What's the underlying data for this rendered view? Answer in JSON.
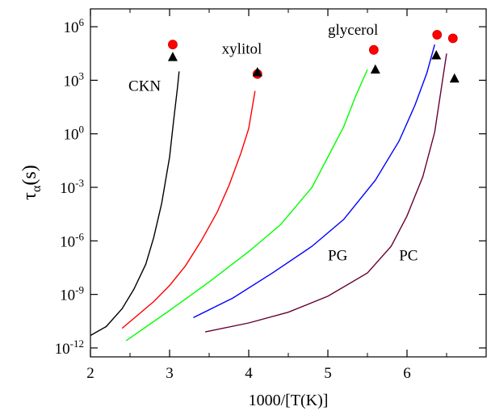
{
  "chart_data": {
    "type": "line",
    "title": "",
    "xlabel": "1000/[T(K)]",
    "ylabel": {
      "main": "τ",
      "sub": "α",
      "suffix": "(s)"
    },
    "xlim": [
      2,
      7
    ],
    "ylim_log10": [
      -12.5,
      7
    ],
    "yscale": "log",
    "grid": false,
    "x_ticks": [
      2,
      3,
      4,
      5,
      6
    ],
    "y_ticks": [
      {
        "base": "10",
        "exp": "6",
        "log": 6
      },
      {
        "base": "10",
        "exp": "3",
        "log": 3
      },
      {
        "base": "10",
        "exp": "0",
        "log": 0
      },
      {
        "base": "10",
        "exp": "-3",
        "log": -3
      },
      {
        "base": "10",
        "exp": "-6",
        "log": -6
      },
      {
        "base": "10",
        "exp": "-9",
        "log": -9
      },
      {
        "base": "10",
        "exp": "-12",
        "log": -12
      }
    ],
    "series": [
      {
        "name": "CKN",
        "color": "#000000",
        "x": [
          2.0,
          2.2,
          2.4,
          2.55,
          2.7,
          2.8,
          2.9,
          3.0,
          3.05,
          3.1,
          3.12
        ],
        "log_y": [
          -11.3,
          -10.8,
          -9.8,
          -8.7,
          -7.3,
          -5.8,
          -3.9,
          -1.3,
          0.7,
          2.6,
          3.5
        ]
      },
      {
        "name": "xylitol",
        "color": "#ff0000",
        "x": [
          2.4,
          2.8,
          3.0,
          3.2,
          3.4,
          3.6,
          3.75,
          3.9,
          4.0,
          4.08
        ],
        "log_y": [
          -10.9,
          -9.4,
          -8.5,
          -7.4,
          -6.0,
          -4.4,
          -2.9,
          -1.1,
          0.3,
          2.4
        ]
      },
      {
        "name": "glycerol",
        "color": "#00ff00",
        "x": [
          2.45,
          3.0,
          3.5,
          4.0,
          4.4,
          4.8,
          5.0,
          5.2,
          5.35,
          5.5
        ],
        "log_y": [
          -11.6,
          -9.9,
          -8.3,
          -6.6,
          -5.1,
          -3.0,
          -1.3,
          0.4,
          2.1,
          3.6
        ]
      },
      {
        "name": "PG",
        "color": "#0000ff",
        "x": [
          3.3,
          3.8,
          4.3,
          4.8,
          5.2,
          5.6,
          5.9,
          6.1,
          6.25,
          6.35
        ],
        "log_y": [
          -10.3,
          -9.2,
          -7.8,
          -6.3,
          -4.8,
          -2.6,
          -0.4,
          1.6,
          3.4,
          5.0
        ]
      },
      {
        "name": "PC",
        "color": "#660033",
        "x": [
          3.45,
          4.0,
          4.5,
          5.0,
          5.5,
          5.8,
          6.0,
          6.2,
          6.35,
          6.5
        ],
        "log_y": [
          -11.1,
          -10.6,
          -10.0,
          -9.1,
          -7.8,
          -6.3,
          -4.6,
          -2.4,
          0.1,
          4.5
        ]
      }
    ],
    "red_circle_markers": {
      "name": "",
      "x": [
        3.04,
        4.11,
        5.58,
        6.38,
        6.58
      ],
      "log_y": [
        5.0,
        3.35,
        4.7,
        5.55,
        5.35
      ]
    },
    "black_triangle_markers": {
      "name": "",
      "x": [
        3.04,
        4.11,
        5.6,
        6.37,
        6.6
      ],
      "log_y": [
        4.3,
        3.45,
        3.6,
        4.4,
        3.1
      ]
    },
    "annotations": [
      {
        "text": "CKN",
        "x": 2.48,
        "log_y": 2.4
      },
      {
        "text": "xylitol",
        "x": 3.66,
        "log_y": 4.5
      },
      {
        "text": "glycerol",
        "x": 5.0,
        "log_y": 5.55
      },
      {
        "text": "PG",
        "x": 5.0,
        "log_y": -7.1
      },
      {
        "text": "PC",
        "x": 5.9,
        "log_y": -7.1
      }
    ]
  }
}
